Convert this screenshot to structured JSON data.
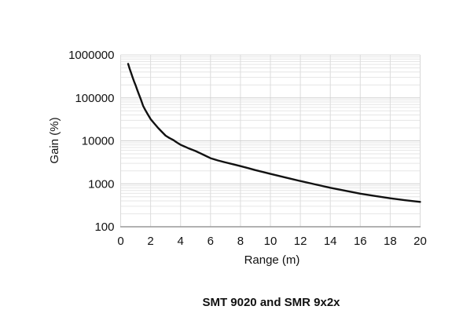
{
  "chart_data": {
    "type": "line",
    "title": "SMT 9020 and SMR 9x2x",
    "xlabel": "Range (m)",
    "ylabel": "Gain (%)",
    "x_scale": "linear",
    "y_scale": "log",
    "xlim": [
      0,
      20
    ],
    "ylim": [
      100,
      1000000
    ],
    "x_ticks": [
      0,
      2,
      4,
      6,
      8,
      10,
      12,
      14,
      16,
      18,
      20
    ],
    "y_ticks": [
      100,
      1000,
      10000,
      100000,
      1000000
    ],
    "grid": "horizontal log minor+major lines, vertical lines at every x tick",
    "legend": "none",
    "series": [
      {
        "name": "gain",
        "points": [
          [
            0.5,
            620000
          ],
          [
            0.6,
            480000
          ],
          [
            0.7,
            380000
          ],
          [
            0.8,
            300000
          ],
          [
            0.9,
            240000
          ],
          [
            1.0,
            195000
          ],
          [
            1.1,
            155000
          ],
          [
            1.2,
            125000
          ],
          [
            1.35,
            92000
          ],
          [
            1.5,
            65000
          ],
          [
            1.65,
            52000
          ],
          [
            1.8,
            42000
          ],
          [
            2.0,
            32000
          ],
          [
            2.25,
            25200
          ],
          [
            2.5,
            20000
          ],
          [
            2.75,
            16200
          ],
          [
            3.0,
            13200
          ],
          [
            3.25,
            11700
          ],
          [
            3.5,
            10500
          ],
          [
            3.75,
            9200
          ],
          [
            4.0,
            8100
          ],
          [
            4.5,
            6800
          ],
          [
            5.0,
            5800
          ],
          [
            5.5,
            4800
          ],
          [
            6.0,
            3950
          ],
          [
            6.5,
            3500
          ],
          [
            7.0,
            3150
          ],
          [
            7.5,
            2850
          ],
          [
            8.0,
            2580
          ],
          [
            8.5,
            2320
          ],
          [
            9.0,
            2080
          ],
          [
            9.5,
            1880
          ],
          [
            10,
            1700
          ],
          [
            11,
            1400
          ],
          [
            12,
            1160
          ],
          [
            13,
            970
          ],
          [
            14,
            810
          ],
          [
            15,
            690
          ],
          [
            16,
            590
          ],
          [
            17,
            520
          ],
          [
            18,
            460
          ],
          [
            19,
            415
          ],
          [
            20,
            380
          ]
        ]
      }
    ]
  },
  "colors": {
    "curve": "#111111",
    "grid_minor": "#e6e6e6",
    "grid_major": "#cfcfcf",
    "grid_vertical": "#dcdcdc",
    "plot_border": "#d9d9d9",
    "axis_bottom": "#999999",
    "text": "#111111",
    "background": "#ffffff"
  }
}
